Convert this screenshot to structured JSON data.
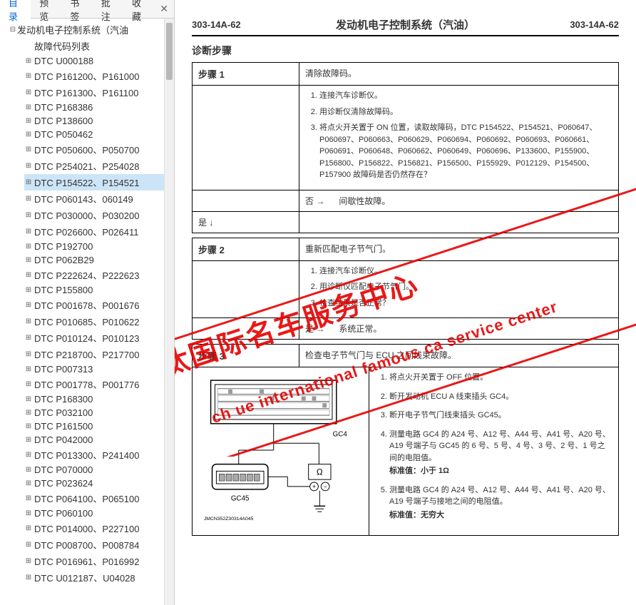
{
  "tabs": {
    "items": [
      "目录",
      "预览",
      "书签",
      "批注",
      "收藏"
    ],
    "activeIndex": 0
  },
  "tree": {
    "root": "发动机电子控制系统（汽油",
    "selectedIndex": 9,
    "items": [
      "故障代码列表",
      "DTC U000188",
      "DTC P161200、P161000",
      "DTC P161300、P161100",
      "DTC P168386",
      "DTC P138600",
      "DTC P050462",
      "DTC P050600、P050700",
      "DTC P254021、P254028",
      "DTC P154522、P154521",
      "DTC P060143、060149",
      "DTC P030000、P030200",
      "DTC P026600、P026411",
      "DTC P192700",
      "DTC P062B29",
      "DTC P222624、P222623",
      "DTC P155800",
      "DTC P001678、P001676",
      "DTC P010685、P010622",
      "DTC P010124、P010123",
      "DTC P218700、P217700",
      "DTC P007313",
      "DTC P001778、P001776",
      "DTC P168300",
      "DTC P032100",
      "DTC P161500",
      "DTC P042000",
      "DTC P013300、P241400",
      "DTC P070000",
      "DTC P023624",
      "DTC P064100、P065100",
      "DTC P060100",
      "DTC P014000、P227100",
      "DTC P008700、P008784",
      "DTC P016961、P016992",
      "DTC U012187、U04028"
    ]
  },
  "page": {
    "codeLeft": "303-14A-62",
    "title": "发动机电子控制系统（汽油）",
    "codeRight": "303-14A-62",
    "sectionTitle": "诊断步骤",
    "step1": {
      "label": "步骤 1",
      "desc": "清除故障码。",
      "items": [
        "连接汽车诊断仪。",
        "用诊断仪清除故障码。",
        "将点火开关置于 ON 位置，读取故障码，DTC P154522、P154521、P060647、P060697、P060663、P060629、P060694、P060692、P060693、P060661、P060691、P060648、P060662、P060649、P060696、P133600、P155900、P156800、P156822、P156821、P156500、P155929、P012129、P154500、P157900 故障码是否仍然存在？"
      ],
      "noLabel": "否 →",
      "noText": "间歇性故障。",
      "yesLabel": "是 ↓"
    },
    "step2": {
      "label": "步骤 2",
      "desc": "重新匹配电子节气门。",
      "items": [
        "连接汽车诊断仪。",
        "用诊断仪匹配电子节气门。",
        "检查结果是否正常？"
      ],
      "yesLabel": "是 →",
      "yesText": "系统正常。"
    },
    "step3": {
      "label": "步骤 3",
      "desc": "检查电子节气门与 ECU 之间线束故障。",
      "items": [
        "将点火开关置于 OFF 位置。",
        "断开发动机 ECU A 线束插头 GC4。",
        "断开电子节气门线束插头 GC45。",
        "测量电路 GC4 的 A24 号、A12 号、A44 号、A41 号、A20 号、A19 号端子与 GC45 的 6 号、5 号、4 号、3 号、2 号、1 号之间的电阻值。",
        "测量电路 GC4 的 A24 号、A12 号、A44 号、A41 号、A20 号、A19 号端子与接地之间的电阻值。"
      ],
      "std1": "标准值：小于 1Ω",
      "std2": "标准值：无穷大",
      "diagramLabel1": "GC4",
      "diagramLabel2": "GC45",
      "diagramCode": "JMCN352Z30314A045"
    }
  },
  "watermark": {
    "line1": "琳汰国际名车服务中心",
    "line2": "ch    ue international famous ca  service center"
  }
}
